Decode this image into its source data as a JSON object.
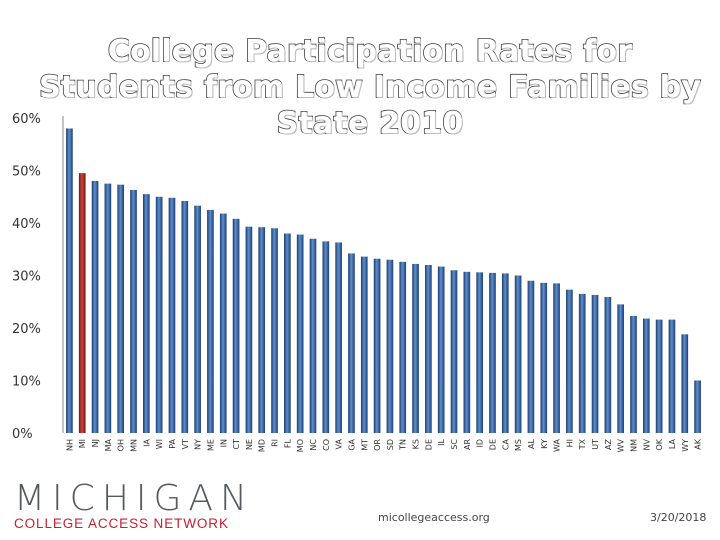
{
  "slide": {
    "title": "College Participation Rates for Students from Low Income Families by State 2010"
  },
  "footer": {
    "logo_word": "MICHIGAN",
    "logo_sub": "COLLEGE ACCESS NETWORK",
    "site": "micollegeaccess.org",
    "date": "3/20/2018"
  },
  "colors": {
    "bar": "#3d6aa8",
    "bar_dark": "#16315c",
    "highlight": "#b22a25",
    "highlight_dark": "#5e100e"
  },
  "chart_data": {
    "type": "bar",
    "title": "College Participation Rates for Students from Low Income Families by State 2010",
    "xlabel": "",
    "ylabel": "",
    "ylim": [
      0,
      60
    ],
    "yticks": [
      0,
      10,
      20,
      30,
      40,
      50,
      60
    ],
    "ytick_labels": [
      "0%",
      "10%",
      "20%",
      "30%",
      "40%",
      "50%",
      "60%"
    ],
    "grid": false,
    "highlight_category": "MI",
    "categories": [
      "NH",
      "MI",
      "NJ",
      "MA",
      "OH",
      "MN",
      "IA",
      "WI",
      "PA",
      "VT",
      "NY",
      "ME",
      "IN",
      "CT",
      "NE",
      "MD",
      "RI",
      "FL",
      "MO",
      "NC",
      "CO",
      "VA",
      "GA",
      "MT",
      "OR",
      "SD",
      "TN",
      "KS",
      "DE",
      "IL",
      "SC",
      "AR",
      "ID",
      "DE",
      "CA",
      "MS",
      "AL",
      "KY",
      "WA",
      "HI",
      "TX",
      "UT",
      "AZ",
      "WV",
      "NM",
      "NV",
      "OK",
      "LA",
      "WY",
      "AK"
    ],
    "values": [
      58,
      49.5,
      48,
      47.5,
      47.3,
      46.3,
      45.5,
      45,
      44.8,
      44.2,
      43.3,
      42.5,
      41.8,
      40.8,
      39.3,
      39.2,
      39,
      38,
      37.8,
      37,
      36.5,
      36.3,
      34.2,
      33.6,
      33.2,
      33,
      32.6,
      32.2,
      32,
      31.7,
      31,
      30.7,
      30.6,
      30.5,
      30.4,
      30,
      29,
      28.6,
      28.5,
      27.3,
      26.5,
      26.3,
      25.9,
      24.5,
      22.3,
      21.8,
      21.6,
      21.6,
      18.8,
      10
    ]
  }
}
